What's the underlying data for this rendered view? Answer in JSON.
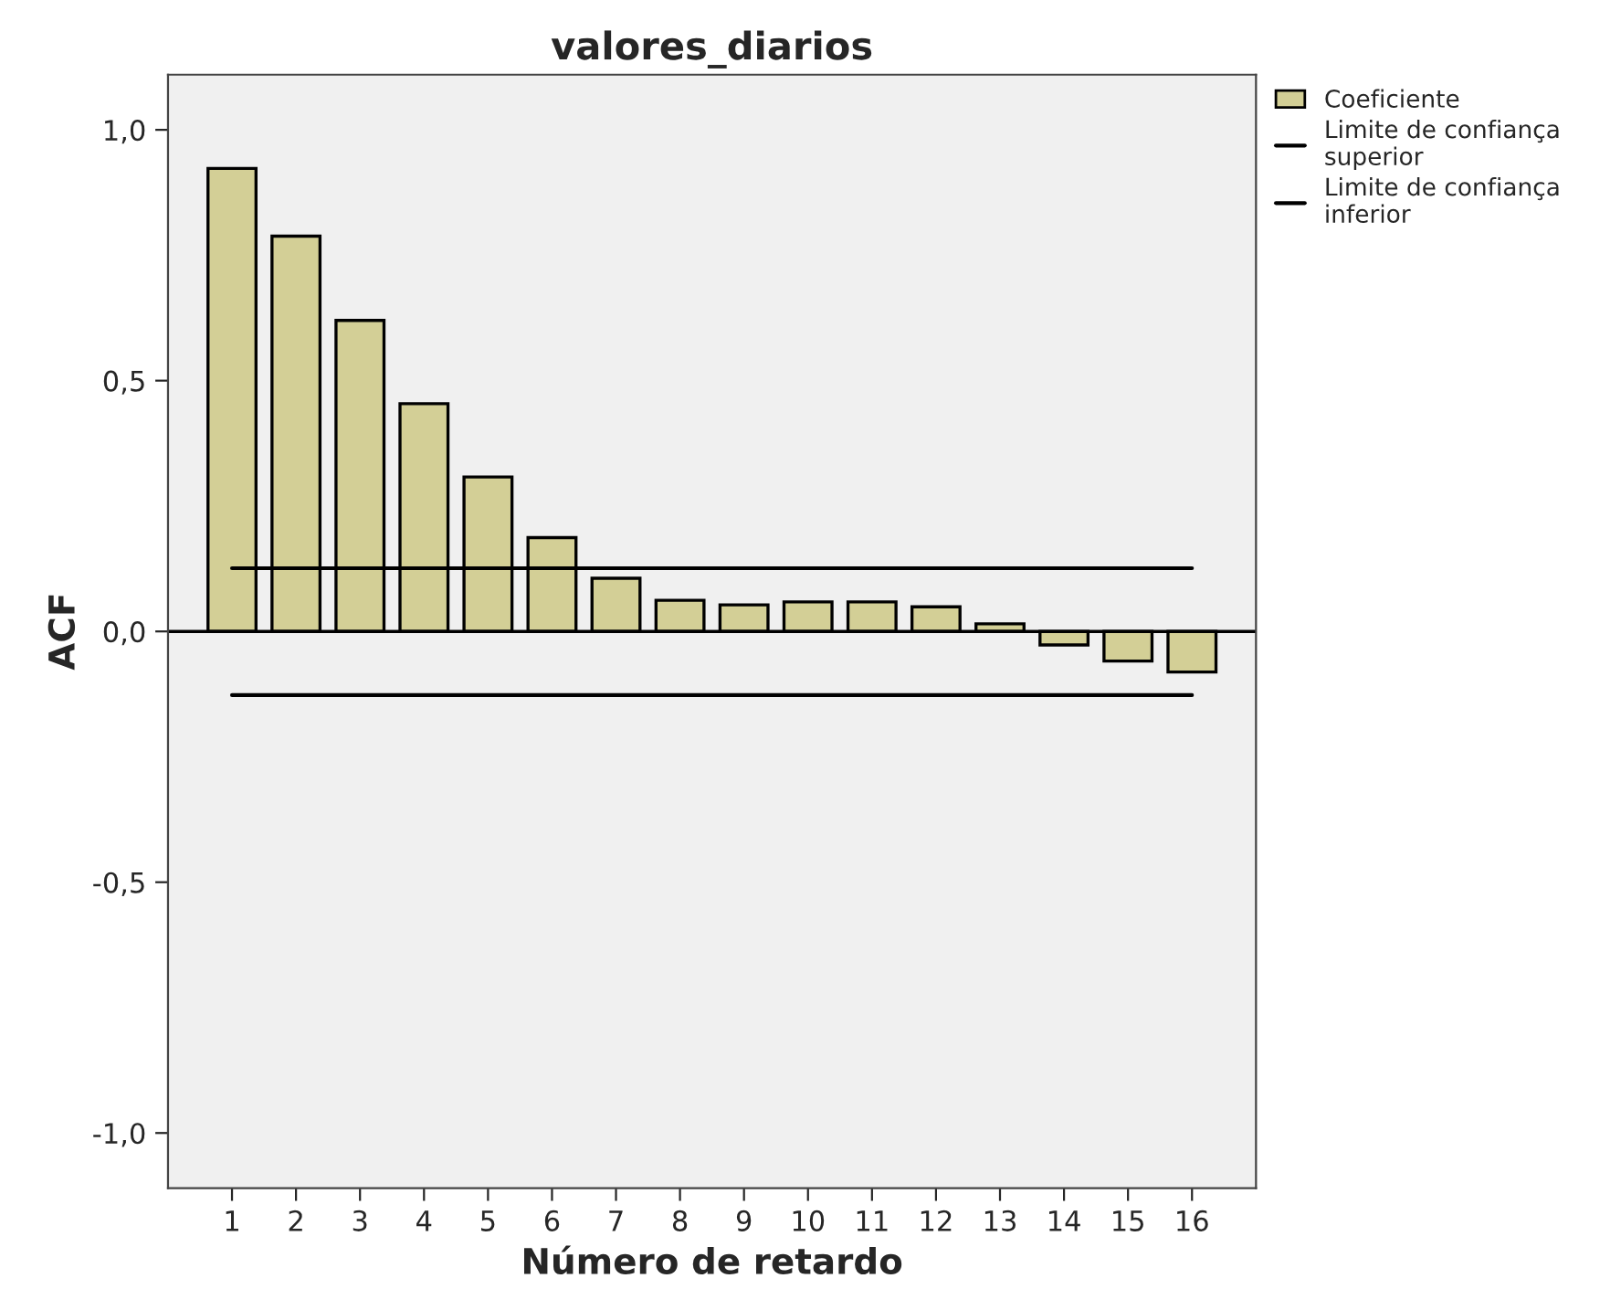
{
  "chart_data": {
    "type": "bar",
    "title": "valores_diarios",
    "xlabel": "Número de retardo",
    "ylabel": "ACF",
    "categories": [
      "1",
      "2",
      "3",
      "4",
      "5",
      "6",
      "7",
      "8",
      "9",
      "10",
      "11",
      "12",
      "13",
      "14",
      "15",
      "16"
    ],
    "series": [
      {
        "name": "Coeficiente",
        "color": "#d3cf96",
        "values": [
          0.923,
          0.788,
          0.62,
          0.454,
          0.308,
          0.187,
          0.106,
          0.062,
          0.053,
          0.059,
          0.059,
          0.049,
          0.015,
          -0.027,
          -0.059,
          -0.081
        ]
      },
      {
        "name": "Limite de confiança\nsuperior",
        "type": "line",
        "color": "#000000",
        "values": [
          0.126,
          0.126,
          0.126,
          0.126,
          0.126,
          0.126,
          0.126,
          0.126,
          0.126,
          0.126,
          0.126,
          0.126,
          0.126,
          0.126,
          0.126,
          0.126
        ]
      },
      {
        "name": "Limite de confiança\ninferior",
        "type": "line",
        "color": "#000000",
        "values": [
          -0.127,
          -0.127,
          -0.127,
          -0.127,
          -0.127,
          -0.127,
          -0.127,
          -0.127,
          -0.127,
          -0.127,
          -0.127,
          -0.127,
          -0.127,
          -0.127,
          -0.127,
          -0.127
        ]
      }
    ],
    "ylim": [
      -1.11,
      1.11
    ],
    "yticks": [
      {
        "value": -1.0,
        "label": "-1,0"
      },
      {
        "value": -0.5,
        "label": "-0,5"
      },
      {
        "value": 0.0,
        "label": "0,0"
      },
      {
        "value": 0.5,
        "label": "0,5"
      },
      {
        "value": 1.0,
        "label": "1,0"
      }
    ],
    "ref_lines": [
      {
        "axis": "y",
        "value": 0,
        "color": "#000000"
      }
    ],
    "grid": false,
    "legend": "top right"
  }
}
